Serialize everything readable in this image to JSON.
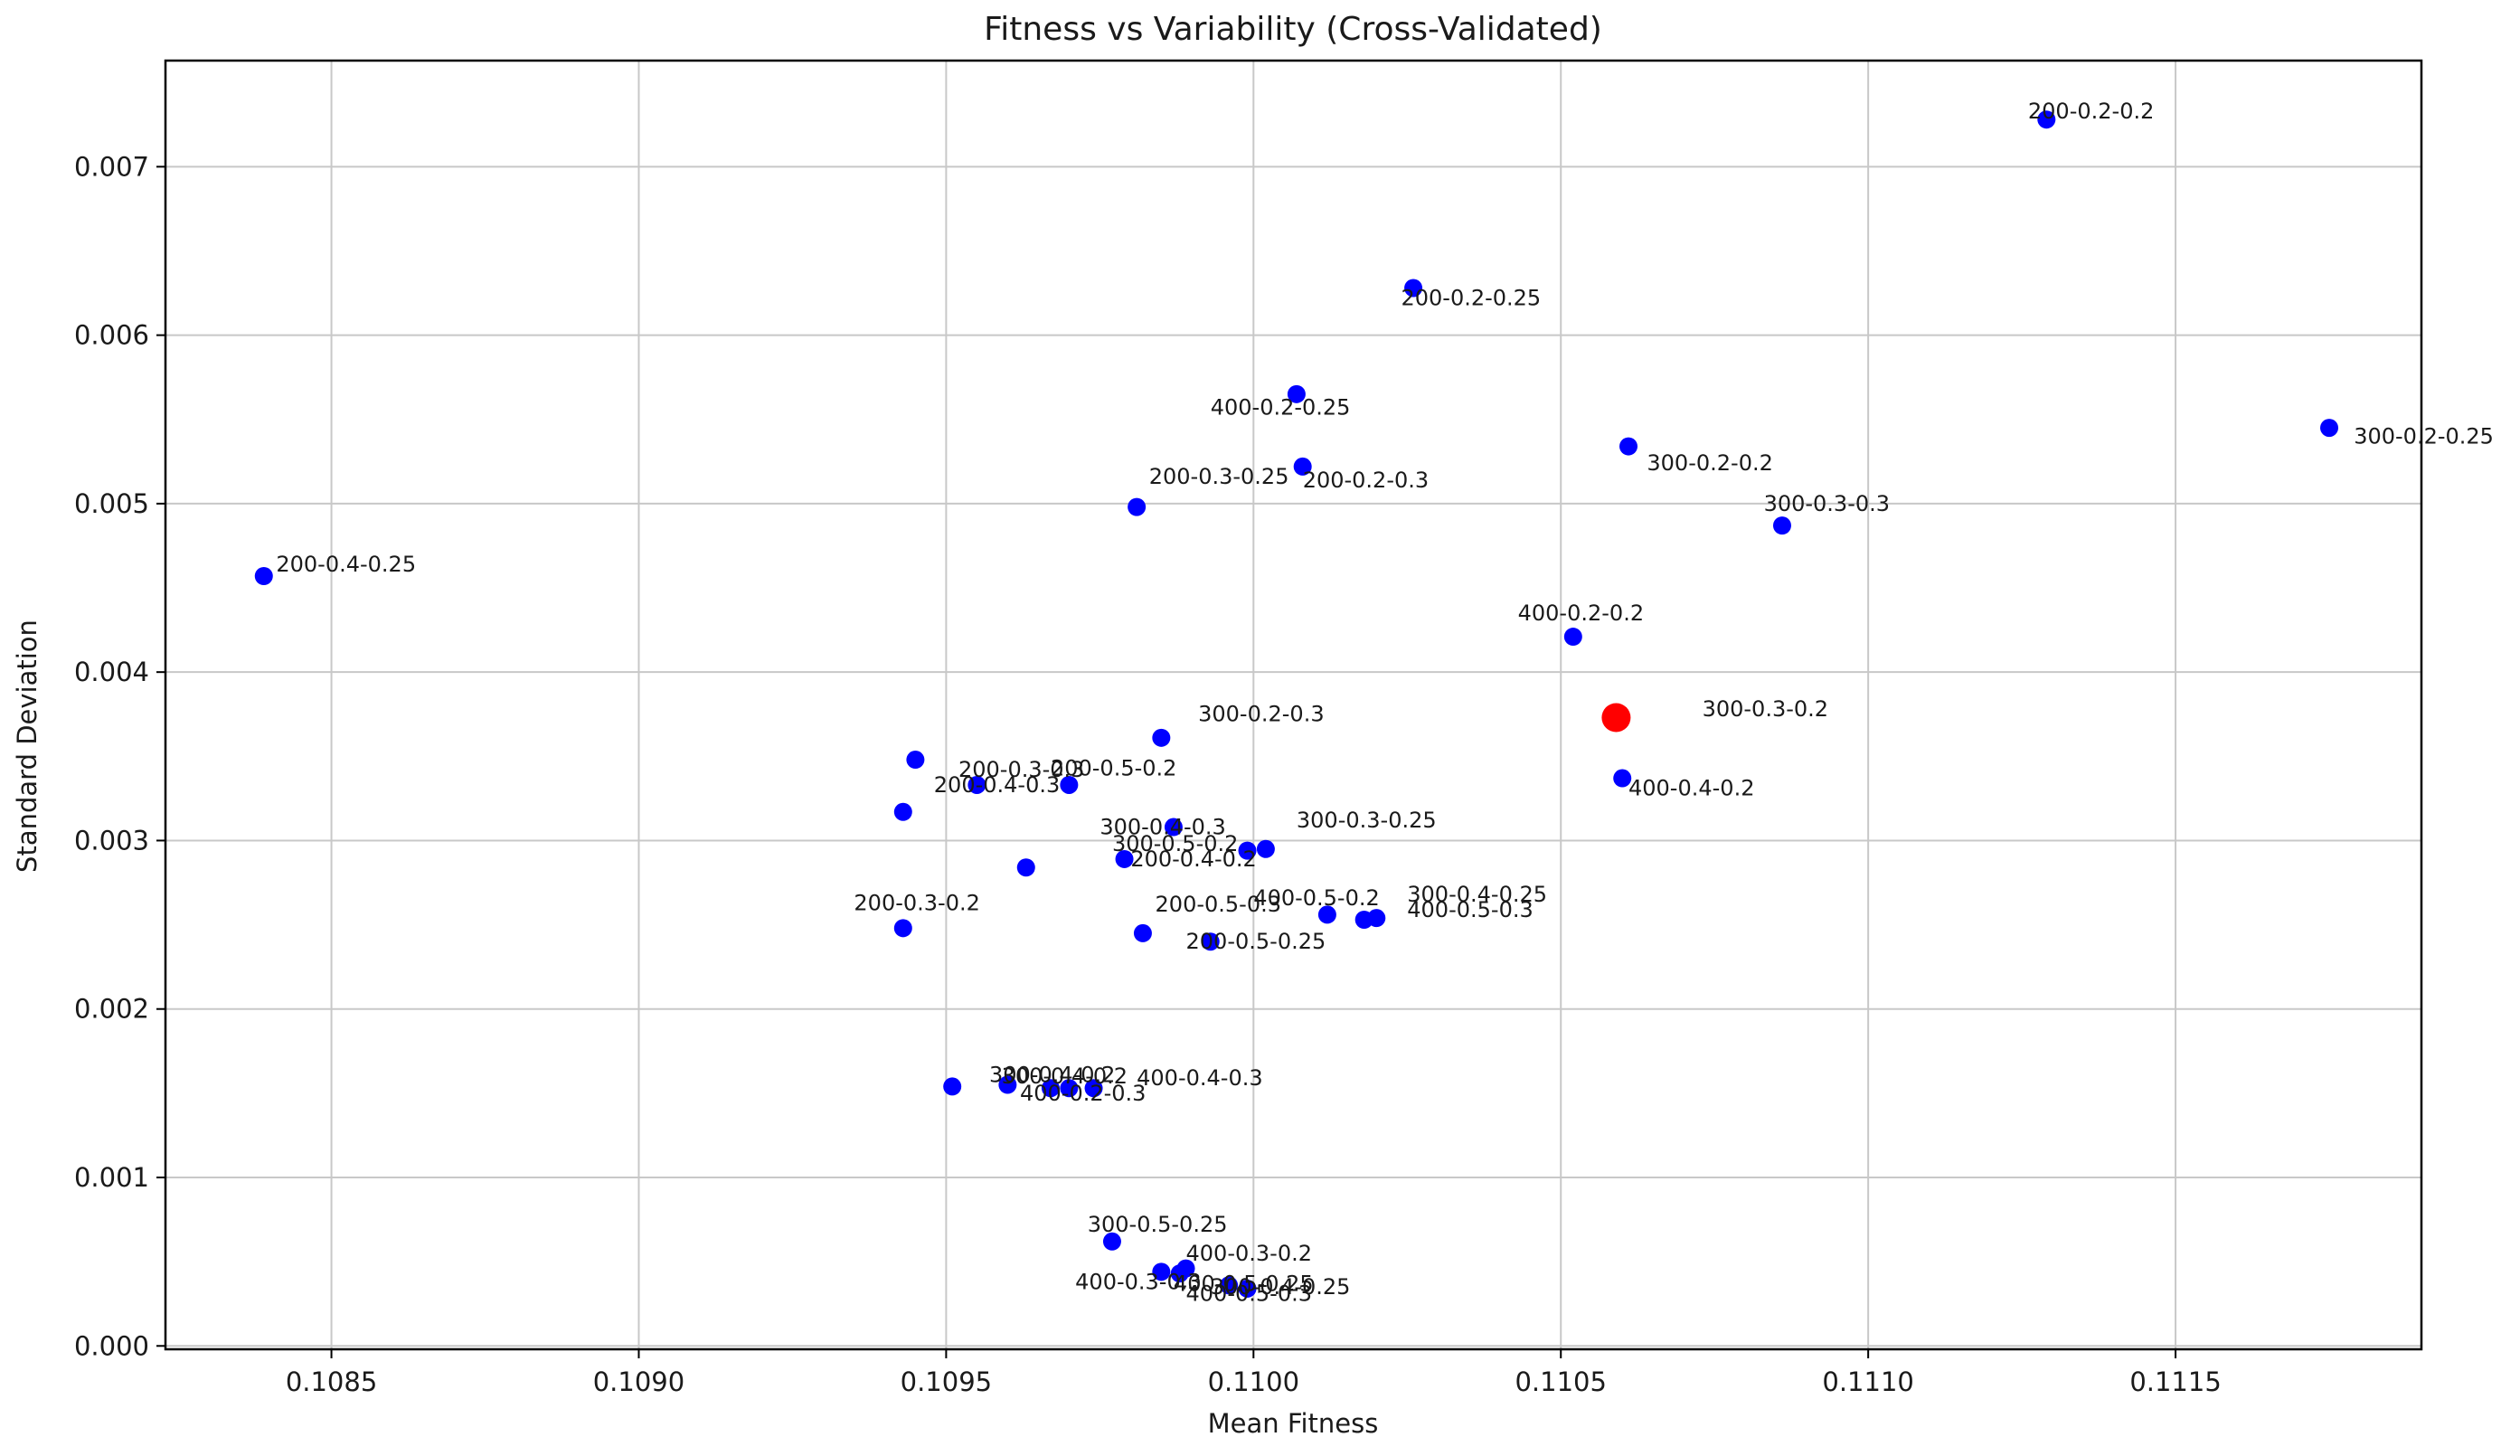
{
  "chart_data": {
    "type": "scatter",
    "title": "Fitness vs Variability (Cross-Validated)",
    "xlabel": "Mean Fitness",
    "ylabel": "Standard Deviation",
    "xlim": [
      0.10823,
      0.1119
    ],
    "ylim": [
      -2e-05,
      0.00763
    ],
    "xticks": [
      {
        "value": 0.1085,
        "label": "0.1085"
      },
      {
        "value": 0.109,
        "label": "0.1090"
      },
      {
        "value": 0.1095,
        "label": "0.1095"
      },
      {
        "value": 0.11,
        "label": "0.1100"
      },
      {
        "value": 0.1105,
        "label": "0.1105"
      },
      {
        "value": 0.111,
        "label": "0.1110"
      },
      {
        "value": 0.1115,
        "label": "0.1115"
      }
    ],
    "yticks": [
      {
        "value": 0.0,
        "label": "0.000"
      },
      {
        "value": 0.001,
        "label": "0.001"
      },
      {
        "value": 0.002,
        "label": "0.002"
      },
      {
        "value": 0.003,
        "label": "0.003"
      },
      {
        "value": 0.004,
        "label": "0.004"
      },
      {
        "value": 0.005,
        "label": "0.005"
      },
      {
        "value": 0.006,
        "label": "0.006"
      },
      {
        "value": 0.007,
        "label": "0.007"
      }
    ],
    "grid": true,
    "colors": {
      "default": "#0000ff",
      "highlight": "#ff0000"
    },
    "points": [
      {
        "label": "200-0.2-0.2",
        "x": 0.11129,
        "y": 0.00728,
        "lx": -3e-05,
        "ly": 5e-05
      },
      {
        "label": "200-0.2-0.25",
        "x": 0.11026,
        "y": 0.00628,
        "lx": -2e-05,
        "ly": -6e-05
      },
      {
        "label": "400-0.2-0.25",
        "x": 0.11007,
        "y": 0.00565,
        "lx": -0.00014,
        "ly": -8e-05
      },
      {
        "label": "300-0.2-0.25",
        "x": 0.11175,
        "y": 0.00545,
        "lx": 4e-05,
        "ly": -5e-05
      },
      {
        "label": "300-0.2-0.2",
        "x": 0.11061,
        "y": 0.00534,
        "lx": 3e-05,
        "ly": -0.0001
      },
      {
        "label": "200-0.2-0.3",
        "x": 0.11008,
        "y": 0.00522,
        "lx": 0.0,
        "ly": -8e-05
      },
      {
        "label": "200-0.3-0.25",
        "x": 0.10981,
        "y": 0.00498,
        "lx": 2e-05,
        "ly": 0.00018
      },
      {
        "label": "300-0.3-0.3",
        "x": 0.11086,
        "y": 0.00487,
        "lx": -3e-05,
        "ly": 0.00013
      },
      {
        "label": "200-0.4-0.25",
        "x": 0.10839,
        "y": 0.00457,
        "lx": 2e-05,
        "ly": 7e-05
      },
      {
        "label": "400-0.2-0.2",
        "x": 0.11052,
        "y": 0.00421,
        "lx": -9e-05,
        "ly": 0.00014
      },
      {
        "label": "300-0.3-0.2",
        "x": 0.11059,
        "y": 0.00373,
        "lx": 0.00014,
        "ly": 5e-05,
        "highlight": true
      },
      {
        "label": "300-0.2-0.3",
        "x": 0.10985,
        "y": 0.00361,
        "lx": 6e-05,
        "ly": 0.00014
      },
      {
        "label": "",
        "x": 0.10945,
        "y": 0.00348
      },
      {
        "label": "400-0.4-0.2",
        "x": 0.1106,
        "y": 0.00337,
        "lx": 1e-05,
        "ly": -6e-05
      },
      {
        "label": "200-0.3-0.3",
        "x": 0.10955,
        "y": 0.00333,
        "lx": -3e-05,
        "ly": 9e-05
      },
      {
        "label": "200-0.5-0.2",
        "x": 0.1097,
        "y": 0.00333,
        "lx": -3e-05,
        "ly": 0.0001
      },
      {
        "label": "200-0.4-0.3",
        "x": 0.10943,
        "y": 0.00317,
        "lx": 5e-05,
        "ly": 0.00016
      },
      {
        "label": "300-0.3-0.25",
        "x": 0.11002,
        "y": 0.00295,
        "lx": 5e-05,
        "ly": 0.00017
      },
      {
        "label": "300-0.4-0.3",
        "x": 0.10987,
        "y": 0.00308,
        "lx": -0.00012,
        "ly": 0.0
      },
      {
        "label": "300-0.5-0.2",
        "x": 0.10999,
        "y": 0.00294,
        "lx": -0.00022,
        "ly": 4e-05
      },
      {
        "label": "200-0.4-0.2",
        "x": 0.10979,
        "y": 0.00289,
        "lx": 1e-05,
        "ly": 0.0
      },
      {
        "label": "",
        "x": 0.10963,
        "y": 0.00284
      },
      {
        "label": "200-0.3-0.2",
        "x": 0.10943,
        "y": 0.00248,
        "lx": -8e-05,
        "ly": 0.00015
      },
      {
        "label": "400-0.5-0.2",
        "x": 0.11012,
        "y": 0.00256,
        "lx": -0.00012,
        "ly": 0.0001
      },
      {
        "label": "300-0.4-0.25",
        "x": 0.11018,
        "y": 0.00253,
        "lx": 7e-05,
        "ly": 0.00015
      },
      {
        "label": "400-0.5-0.3",
        "x": 0.1102,
        "y": 0.00254,
        "lx": 5e-05,
        "ly": 5e-05
      },
      {
        "label": "200-0.5-0.3",
        "x": 0.10982,
        "y": 0.00245,
        "lx": 2e-05,
        "ly": 0.00017
      },
      {
        "label": "200-0.5-0.25",
        "x": 0.10993,
        "y": 0.0024,
        "lx": -4e-05,
        "ly": 0.0
      },
      {
        "label": "",
        "x": 0.10951,
        "y": 0.00154
      },
      {
        "label": "300-0.4-0.2",
        "x": 0.1096,
        "y": 0.00155,
        "lx": -3e-05,
        "ly": 6e-05
      },
      {
        "label": "300-0.4-0.2",
        "x": 0.10967,
        "y": 0.00153,
        "lx": -8e-05,
        "ly": 7e-05
      },
      {
        "label": "400-0.2-0.3",
        "x": 0.1097,
        "y": 0.00153,
        "lx": -8e-05,
        "ly": -3e-05
      },
      {
        "label": "400-0.4-0.3",
        "x": 0.10974,
        "y": 0.00153,
        "lx": 7e-05,
        "ly": 6e-05
      },
      {
        "label": "300-0.5-0.25",
        "x": 0.10977,
        "y": 0.00062,
        "lx": -4e-05,
        "ly": 0.0001
      },
      {
        "label": "400-0.3-0.2",
        "x": 0.10989,
        "y": 0.00046,
        "lx": 0.0,
        "ly": 9e-05
      },
      {
        "label": "400-0.3-0.3",
        "x": 0.10985,
        "y": 0.00044,
        "lx": -0.00014,
        "ly": -6e-05
      },
      {
        "label": "400-0.5-0.25",
        "x": 0.10988,
        "y": 0.00043,
        "lx": -1e-05,
        "ly": -6e-05
      },
      {
        "label": "300-0.4-0.25",
        "x": 0.10996,
        "y": 0.00036,
        "lx": -3e-05,
        "ly": -1e-05
      },
      {
        "label": "400-0.5-0.3",
        "x": 0.10999,
        "y": 0.00034,
        "lx": -0.0001,
        "ly": -3e-05
      }
    ]
  }
}
